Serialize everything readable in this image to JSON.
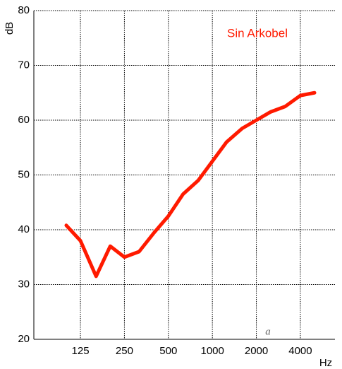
{
  "chart_data": {
    "type": "line",
    "x_label": "Hz",
    "y_label": "dB",
    "x": [
      100,
      125,
      160,
      200,
      250,
      315,
      400,
      500,
      630,
      800,
      1000,
      1250,
      1600,
      2000,
      2500,
      3150,
      4000,
      5000
    ],
    "series": [
      {
        "name": "Sin Arkobel",
        "color": "#ff1a00",
        "values": [
          40.8,
          38,
          31.5,
          37,
          35,
          36,
          39.5,
          42.5,
          46.5,
          49,
          52.5,
          56,
          58.5,
          60,
          61.5,
          62.5,
          64.5,
          65
        ]
      }
    ],
    "xscale": "log",
    "xlim": [
      60,
      6900
    ],
    "xticks": [
      125,
      250,
      500,
      1000,
      2000,
      4000
    ],
    "ylim": [
      20,
      80
    ],
    "yticks": [
      20,
      30,
      40,
      50,
      60,
      70,
      80
    ],
    "grid": true
  }
}
